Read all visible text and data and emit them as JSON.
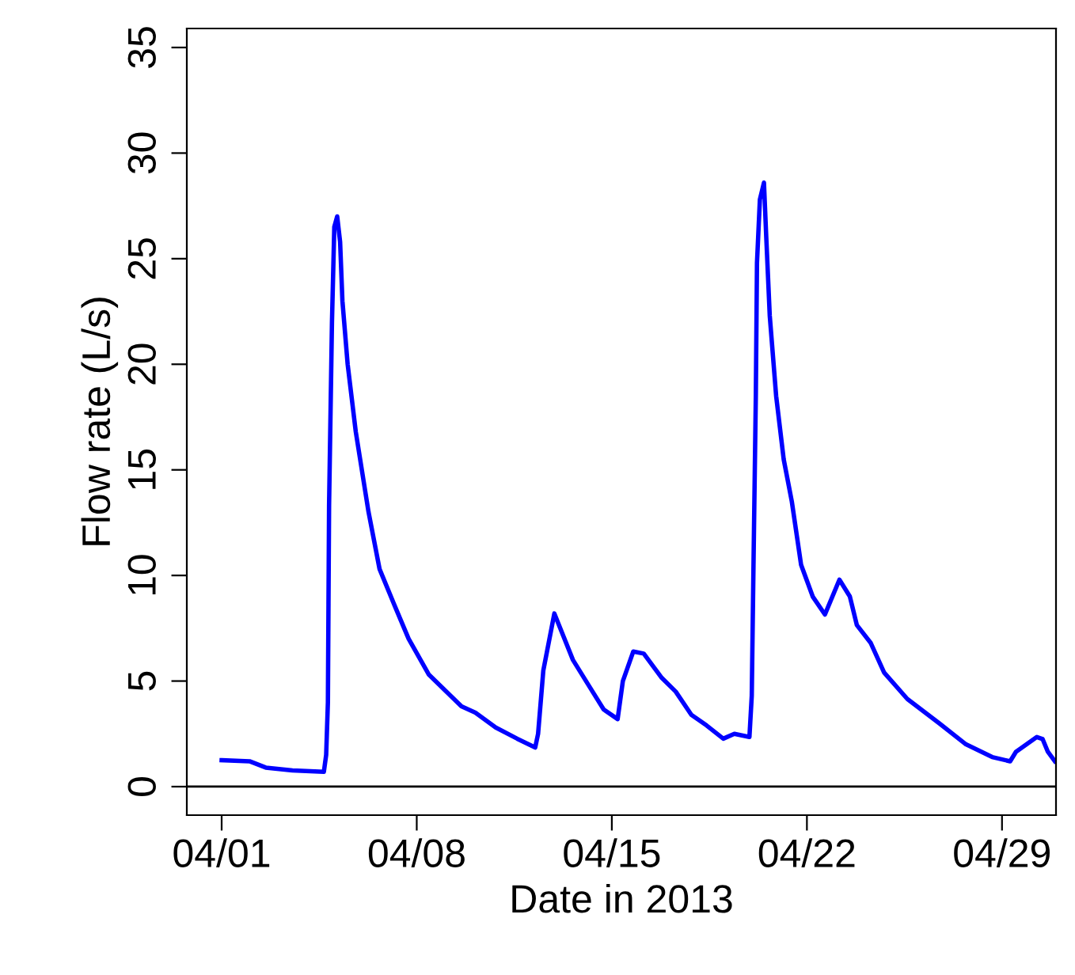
{
  "chart_data": {
    "type": "line",
    "xlabel": "Date in 2013",
    "ylabel": "Flow rate (L/s)",
    "x": [
      "2013-04-01T00:00",
      "2013-04-02T00:00",
      "2013-04-02T14:00",
      "2013-04-03T13:00",
      "2013-04-04T16:00",
      "2013-04-04T18:00",
      "2013-04-04T19:30",
      "2013-04-04T20:30",
      "2013-04-04T23:00",
      "2013-04-05T01:00",
      "2013-04-05T03:30",
      "2013-04-05T06:00",
      "2013-04-05T08:00",
      "2013-04-05T12:30",
      "2013-04-05T19:30",
      "2013-04-06T06:30",
      "2013-04-06T16:00",
      "2013-04-07T05:30",
      "2013-04-07T17:00",
      "2013-04-08T10:30",
      "2013-04-09T14:30",
      "2013-04-10T02:30",
      "2013-04-10T20:00",
      "2013-04-11T14:30",
      "2013-04-12T06:00",
      "2013-04-12T08:30",
      "2013-04-12T13:00",
      "2013-04-12T22:30",
      "2013-04-13T14:30",
      "2013-04-14T04:00",
      "2013-04-14T17:00",
      "2013-04-15T05:00",
      "2013-04-15T09:30",
      "2013-04-15T18:30",
      "2013-04-16T03:30",
      "2013-04-16T19:00",
      "2013-04-17T07:00",
      "2013-04-17T20:30",
      "2013-04-18T09:30",
      "2013-04-19T00:00",
      "2013-04-19T09:30",
      "2013-04-19T22:30",
      "2013-04-20T00:30",
      "2013-04-20T02:00",
      "2013-04-20T04:00",
      "2013-04-20T05:00",
      "2013-04-20T07:30",
      "2013-04-20T11:00",
      "2013-04-20T13:00",
      "2013-04-20T16:00",
      "2013-04-20T21:30",
      "2013-04-21T04:00",
      "2013-04-21T11:00",
      "2013-04-21T19:00",
      "2013-04-22T05:00",
      "2013-04-22T15:30",
      "2013-04-23T04:00",
      "2013-04-23T13:00",
      "2013-04-23T19:00",
      "2013-04-24T07:00",
      "2013-04-24T18:30",
      "2013-04-25T14:30",
      "2013-04-26T18:00",
      "2013-04-27T17:00",
      "2013-04-28T15:30",
      "2013-04-29T07:00",
      "2013-04-29T12:00",
      "2013-04-30T06:00",
      "2013-04-30T11:00",
      "2013-04-30T15:30",
      "2013-04-30T21:30"
    ],
    "series": [
      {
        "color": "#0000ff",
        "values": [
          1.25,
          1.2,
          0.9,
          0.77,
          0.7,
          1.5,
          4.0,
          13.3,
          22.0,
          26.5,
          27.0,
          25.8,
          23.0,
          20.0,
          16.8,
          13.0,
          10.3,
          8.5,
          7.0,
          5.3,
          3.8,
          3.5,
          2.8,
          2.27,
          1.85,
          2.5,
          5.5,
          8.2,
          6.0,
          4.8,
          3.65,
          3.2,
          5.0,
          6.4,
          6.3,
          5.15,
          4.5,
          3.4,
          2.9,
          2.27,
          2.5,
          2.35,
          4.3,
          10.5,
          18.5,
          24.8,
          27.8,
          28.6,
          26.0,
          22.3,
          18.5,
          15.5,
          13.5,
          10.5,
          9.0,
          8.15,
          9.8,
          9.0,
          7.65,
          6.8,
          5.4,
          4.15,
          3.0,
          2.0,
          1.4,
          1.2,
          1.65,
          2.35,
          2.25,
          1.65,
          1.2
        ]
      }
    ],
    "xlim": [
      "2013-03-30T18:00",
      "2013-04-30T22:30"
    ],
    "xticks": [
      {
        "value": "2013-04-01",
        "label": "04/01"
      },
      {
        "value": "2013-04-08",
        "label": "04/08"
      },
      {
        "value": "2013-04-15",
        "label": "04/15"
      },
      {
        "value": "2013-04-22",
        "label": "04/22"
      },
      {
        "value": "2013-04-29",
        "label": "04/29"
      }
    ],
    "ylim": [
      -1.35,
      35.9
    ],
    "yticks": [
      0,
      5,
      10,
      15,
      20,
      25,
      30,
      35
    ],
    "ref_lines": [
      {
        "axis": "y",
        "value": 0,
        "color": "#000000"
      }
    ],
    "grid": false,
    "legend": false,
    "marker": "none",
    "line_style": "solid"
  }
}
